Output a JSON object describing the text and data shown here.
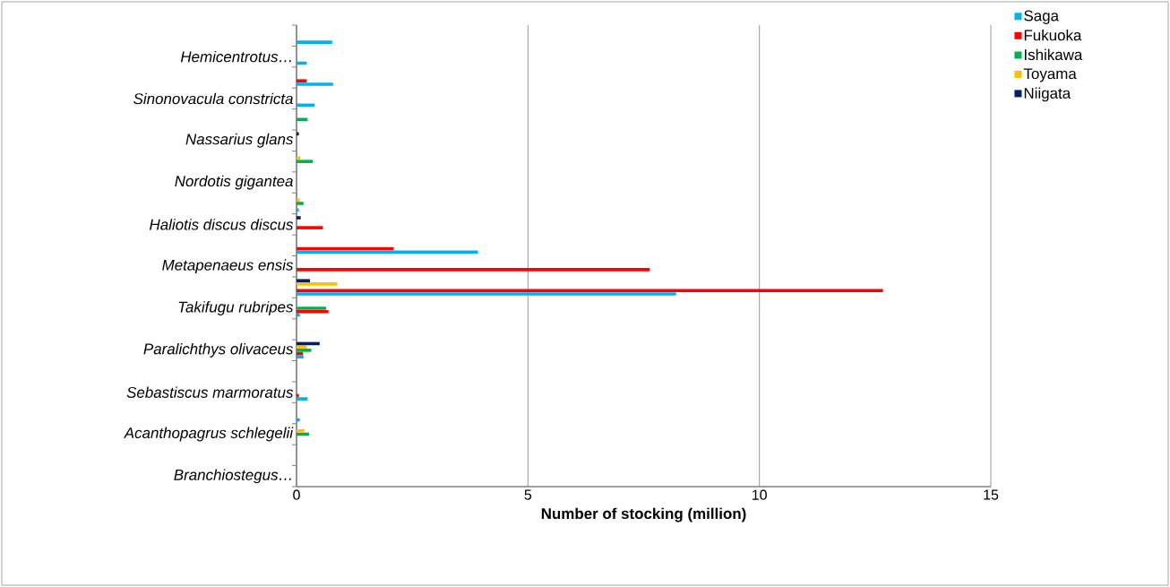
{
  "chart_data": {
    "type": "bar",
    "orientation": "horizontal",
    "xlabel": "Number of stocking (million)",
    "categories": [
      null,
      "*Hemicentrotus…*",
      null,
      "*Sinonovacula constricta*",
      null,
      "*Nassarius glans*",
      null,
      "*Nordotis gigantea*",
      null,
      "*Haliotis discus discus*",
      null,
      "*Metapenaeus ensis*",
      null,
      "*Takifugu rubripes*",
      null,
      "*Paralichthys olivaceus*",
      null,
      "*Sebastiscus marmoratus*",
      null,
      "*Acanthopagrus schlegelii*",
      null,
      "*Branchiostegus…*"
    ],
    "series": [
      {
        "name": "Saga",
        "color": "#00b0f0",
        "values": [
          0.77,
          0.22,
          0.79,
          0.39,
          null,
          null,
          null,
          null,
          0.05,
          null,
          3.92,
          null,
          8.2,
          0.07,
          null,
          0.15,
          null,
          0.24,
          0.07,
          null,
          null,
          null
        ]
      },
      {
        "name": "Fukuoka",
        "color": "#ff0000",
        "values": [
          null,
          null,
          0.22,
          null,
          null,
          null,
          null,
          null,
          null,
          0.57,
          2.1,
          7.63,
          12.67,
          0.69,
          null,
          0.14,
          null,
          0.05,
          null,
          null,
          null,
          null
        ]
      },
      {
        "name": "Ishikawa",
        "color": "#00b050",
        "values": [
          null,
          null,
          null,
          null,
          0.24,
          null,
          0.35,
          null,
          0.15,
          null,
          null,
          null,
          null,
          0.64,
          null,
          0.32,
          null,
          null,
          null,
          0.27,
          null,
          null
        ]
      },
      {
        "name": "Toyama",
        "color": "#ffc000",
        "values": [
          null,
          null,
          null,
          null,
          null,
          null,
          0.08,
          null,
          0.07,
          null,
          null,
          null,
          0.88,
          null,
          null,
          0.22,
          null,
          null,
          null,
          0.17,
          null,
          null
        ]
      },
      {
        "name": "Niigata",
        "color": "#002060",
        "values": [
          null,
          null,
          null,
          null,
          null,
          0.05,
          null,
          null,
          null,
          0.09,
          null,
          null,
          0.29,
          null,
          null,
          0.5,
          null,
          null,
          null,
          null,
          null,
          null
        ]
      }
    ],
    "xlim": [
      0,
      15
    ],
    "xticks": [
      0,
      5,
      10,
      15
    ],
    "grid": "x",
    "legend": "top right"
  }
}
